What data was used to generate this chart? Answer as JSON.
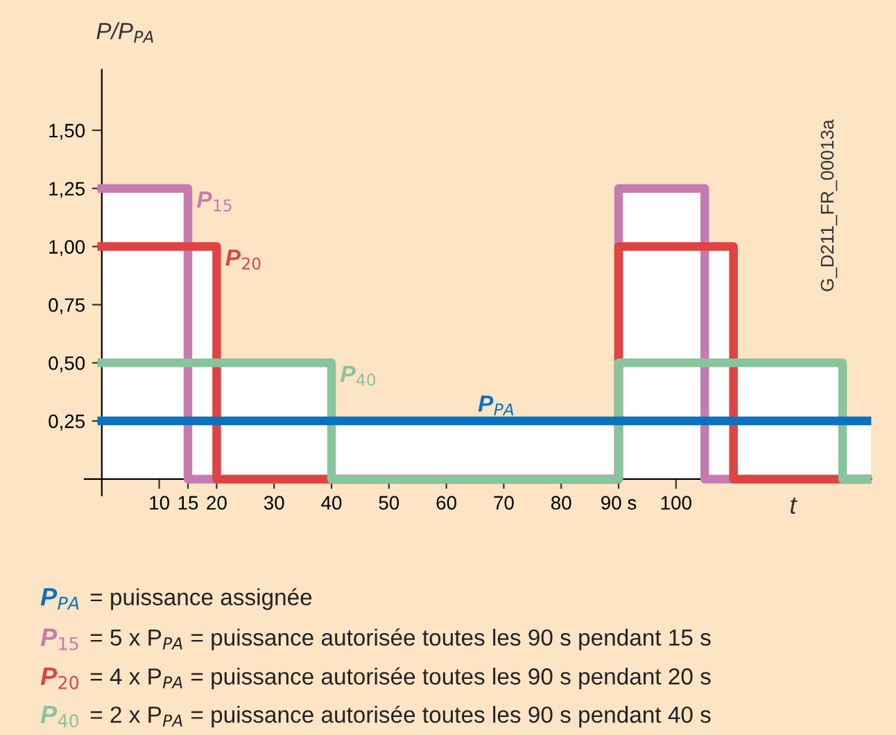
{
  "chart_data": {
    "type": "step",
    "ylabel": "P/P$_{PA}$",
    "xlabel": "t",
    "xlim": [
      -3,
      134
    ],
    "ylim": [
      -0.07,
      1.76
    ],
    "xticks": [
      10,
      15,
      20,
      30,
      40,
      50,
      60,
      70,
      80,
      {
        "value": 90,
        "label": "90 s"
      },
      100
    ],
    "yticks": [
      {
        "value": 0.25,
        "label": "0,25"
      },
      {
        "value": 0.5,
        "label": "0,50"
      },
      {
        "value": 0.75,
        "label": "0,75"
      },
      {
        "value": 1.0,
        "label": "1,00"
      },
      {
        "value": 1.25,
        "label": "1,25"
      },
      {
        "value": 1.5,
        "label": "1,50"
      }
    ],
    "series": [
      {
        "name": "P$_{PA}$",
        "color": "#0a72c0",
        "x": [
          0,
          134
        ],
        "values": [
          0.25,
          0.25
        ]
      },
      {
        "name": "P$_{15}$",
        "color": "#c47cb0",
        "x": [
          0,
          15,
          90,
          105,
          134
        ],
        "values": [
          1.25,
          0,
          1.25,
          0,
          0
        ]
      },
      {
        "name": "P$_{20}$",
        "color": "#de4444",
        "x": [
          0,
          20,
          90,
          110,
          134
        ],
        "values": [
          1.0,
          0,
          1.0,
          0,
          0
        ]
      },
      {
        "name": "P$_{40}$",
        "color": "#88c49c",
        "x": [
          0,
          40,
          90,
          129,
          134
        ],
        "values": [
          0.5,
          0,
          0.5,
          0,
          0
        ]
      }
    ],
    "annotations": [
      "G_D211_FR_00013a",
      "= puissance assignée",
      "= 5 x P$_{PA}$ = puissance autorisée toutes les 90 s pendant 15 s",
      "= 4 x P$_{PA}$ = puissance autorisée toutes les 90 s pendant 20 s",
      "= 2 x P$_{PA}$ = puissance autorisée toutes les 90 s pendant 40 s"
    ],
    "grid": false,
    "legend": "bottom",
    "line_style": "solid",
    "marker": "none"
  }
}
